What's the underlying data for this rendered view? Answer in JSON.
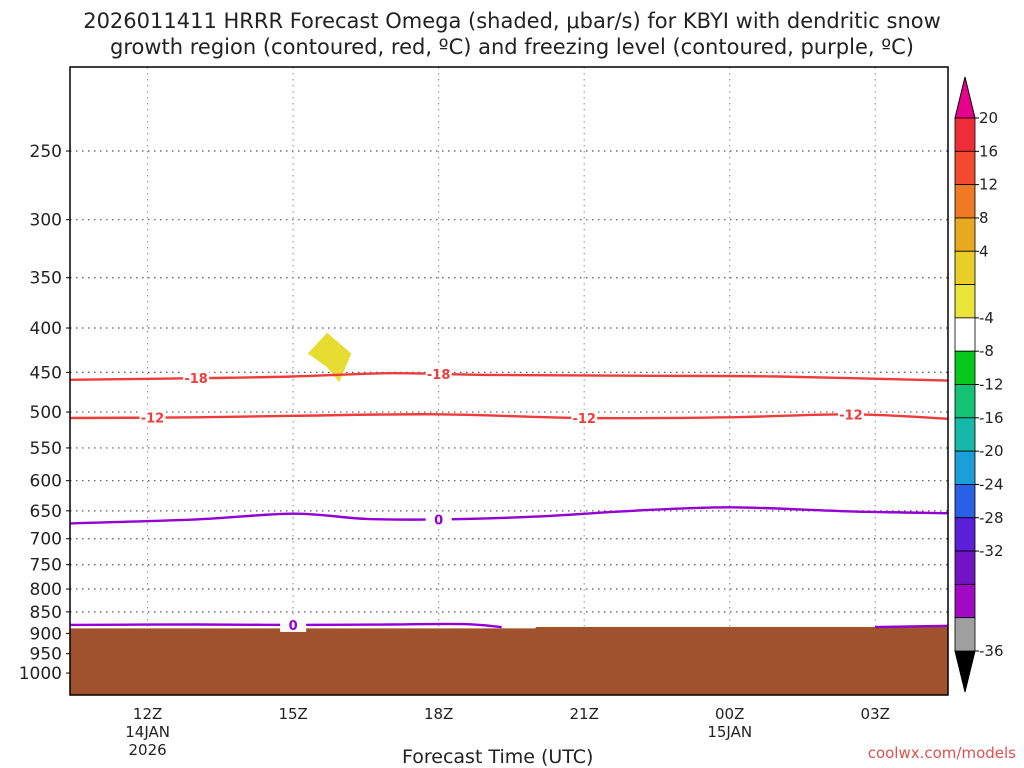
{
  "page": {
    "title_line1": "2026011411 HRRR Forecast Omega (shaded, μbar/s) for KBYI with dendritic snow",
    "title_line2": "growth region (contoured, red, ºC) and freezing level (contoured, purple, ºC)",
    "credit": "coolwx.com/models"
  },
  "chart_data": {
    "type": "time-height cross section",
    "title": "2026011411 HRRR Forecast Omega (shaded, μbar/s) for KBYI with dendritic snow growth region (contoured, red, ºC) and freezing level (contoured, purple, ºC)",
    "xlabel": "Forecast Time (UTC)",
    "ylabel": "",
    "x_range_hours": [
      -1.6,
      16.5
    ],
    "y_log_pressure": true,
    "y_range_hPa": [
      1060,
      200
    ],
    "grid": true,
    "y_ticks": [
      250,
      300,
      350,
      400,
      450,
      500,
      550,
      600,
      650,
      700,
      750,
      800,
      850,
      900,
      950,
      1000
    ],
    "x_ticks": [
      {
        "hour": 0,
        "label": "12Z",
        "sub1": "14JAN",
        "sub2": "2026"
      },
      {
        "hour": 3,
        "label": "15Z",
        "sub1": "",
        "sub2": ""
      },
      {
        "hour": 6,
        "label": "18Z",
        "sub1": "",
        "sub2": ""
      },
      {
        "hour": 9,
        "label": "21Z",
        "sub1": "",
        "sub2": ""
      },
      {
        "hour": 12,
        "label": "00Z",
        "sub1": "15JAN",
        "sub2": ""
      },
      {
        "hour": 15,
        "label": "03Z",
        "sub1": "",
        "sub2": ""
      }
    ],
    "terrain": {
      "color": "#a0522d",
      "points": [
        [
          -1.6,
          888
        ],
        [
          8.0,
          888
        ],
        [
          8.0,
          885
        ],
        [
          16.5,
          885
        ]
      ]
    },
    "omega_shaded": [
      {
        "value_range": [
          4,
          8
        ],
        "color": "#e6dc32",
        "polygon": [
          [
            3.7,
            405
          ],
          [
            4.2,
            428
          ],
          [
            3.95,
            462
          ],
          [
            3.7,
            444
          ],
          [
            3.3,
            428
          ]
        ]
      }
    ],
    "contours": [
      {
        "value": -18,
        "label": "-18",
        "color": "#ee3c3c",
        "points": [
          [
            -1.6,
            459
          ],
          [
            1.0,
            457
          ],
          [
            3.0,
            455
          ],
          [
            5.0,
            451
          ],
          [
            7.0,
            453
          ],
          [
            10.0,
            454
          ],
          [
            13.0,
            455
          ],
          [
            16.5,
            460
          ]
        ],
        "label_hours": [
          1.0,
          6.0
        ]
      },
      {
        "value": -12,
        "label": "-12",
        "color": "#ee3c3c",
        "points": [
          [
            -1.6,
            508
          ],
          [
            1.0,
            507
          ],
          [
            3.0,
            505
          ],
          [
            6.0,
            503
          ],
          [
            9.0,
            508
          ],
          [
            12.0,
            507
          ],
          [
            14.5,
            503
          ],
          [
            16.5,
            509
          ]
        ],
        "label_hours": [
          0.1,
          9.0,
          14.5
        ]
      },
      {
        "value": 0,
        "label": "0",
        "color": "#9400d3",
        "points": [
          [
            -1.6,
            672
          ],
          [
            1.0,
            665
          ],
          [
            3.0,
            655
          ],
          [
            4.5,
            664
          ],
          [
            6.0,
            665
          ],
          [
            8.0,
            660
          ],
          [
            10.0,
            650
          ],
          [
            12.0,
            644
          ],
          [
            14.5,
            651
          ],
          [
            16.5,
            654
          ]
        ],
        "label_hours": [
          6.0
        ]
      },
      {
        "value": 0,
        "label": "0",
        "color": "#9400d3",
        "points": [
          [
            -1.6,
            880
          ],
          [
            1.0,
            879
          ],
          [
            3.0,
            880
          ],
          [
            5.0,
            879
          ],
          [
            6.5,
            878
          ],
          [
            7.3,
            885
          ]
        ],
        "label_hours": [
          3.0
        ]
      },
      {
        "value": 0,
        "label": "",
        "color": "#9400d3",
        "points": [
          [
            15.0,
            885
          ],
          [
            16.5,
            882
          ]
        ],
        "label_hours": []
      }
    ],
    "colorbar": {
      "labels": [
        "20",
        "16",
        "12",
        "8",
        "4",
        "-4",
        "-8",
        "-12",
        "-16",
        "-20",
        "-24",
        "-28",
        "-32",
        "-36"
      ],
      "top_arrow_color": "#e6008c",
      "bottom_arrow_color": "#000000",
      "colors": [
        "#ee2d39",
        "#f04a2f",
        "#ef7a23",
        "#e8a921",
        "#e7cf28",
        "#e8e439",
        "#ffffff",
        "#08c71c",
        "#13c275",
        "#16b9a7",
        "#1a9fd8",
        "#2a60e6",
        "#5a1fd6",
        "#7214c4",
        "#a00ac4",
        "#a0a0a0"
      ]
    }
  }
}
